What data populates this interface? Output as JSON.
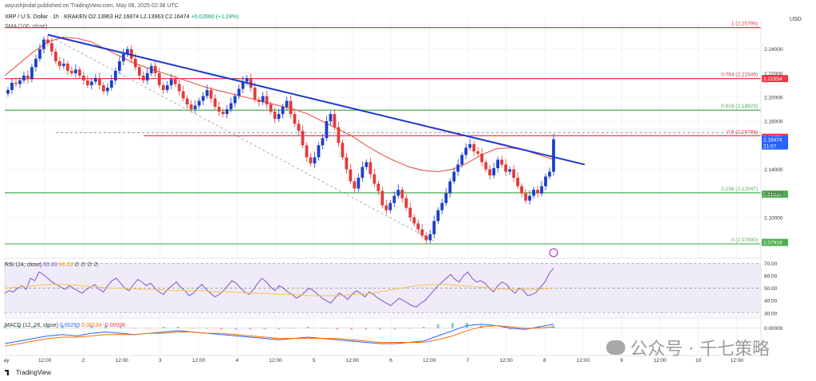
{
  "header": {
    "published": "aayushjindal published on TradingView.com, May 08, 2025 02:38 UTC",
    "symbol": "XRP / U.S. Dollar · 1h · KRAKEN",
    "ohlc": "O2.13963 H2.16874 L2.13963 C2.16474",
    "change": "+0.02660 (+1.24%)",
    "sma_label": "SMA (100, close)",
    "currency": "USD"
  },
  "indicators": {
    "rsi_label": "RSI (14, close)",
    "rsi_value": "65.93",
    "rsi_ma": "48.26",
    "rsi_extra": "∅ ∅ ∅ ∅",
    "macd_label": "MACD (12, 26, close)",
    "macd_values": [
      "0.00293",
      "0.00134",
      "-0.00098"
    ]
  },
  "watermark": "公众号 · 千七策略",
  "branding": "TradingView",
  "chart_data": [
    {
      "type": "candlestick",
      "title": "XRP / U.S. Dollar · 1h · KRAKEN",
      "ylim": [
        2.07,
        2.265
      ],
      "xlabel": "",
      "ylabel": "USD",
      "x_ticks": [
        "ay",
        "12:00",
        "2",
        "12:00",
        "3",
        "12:00",
        "4",
        "12:00",
        "5",
        "12:00",
        "6",
        "12:00",
        "7",
        "12:00",
        "8",
        "12:00",
        "9",
        "12:00",
        "10",
        "12:00"
      ],
      "y_ticks": [
        2.24,
        2.22,
        2.2,
        2.18,
        2.14,
        2.12,
        2.1
      ],
      "close_path": [
        2.206,
        2.212,
        2.211,
        2.214,
        2.218,
        2.215,
        2.225,
        2.232,
        2.24,
        2.248,
        2.245,
        2.238,
        2.23,
        2.226,
        2.228,
        2.222,
        2.22,
        2.223,
        2.218,
        2.214,
        2.21,
        2.213,
        2.216,
        2.21,
        2.205,
        2.208,
        2.214,
        2.222,
        2.23,
        2.236,
        2.24,
        2.232,
        2.225,
        2.218,
        2.214,
        2.22,
        2.226,
        2.22,
        2.21,
        2.206,
        2.21,
        2.215,
        2.211,
        2.205,
        2.199,
        2.194,
        2.19,
        2.193,
        2.197,
        2.201,
        2.206,
        2.199,
        2.192,
        2.188,
        2.186,
        2.19,
        2.195,
        2.201,
        2.207,
        2.213,
        2.216,
        2.208,
        2.198,
        2.196,
        2.201,
        2.194,
        2.188,
        2.182,
        2.186,
        2.192,
        2.197,
        2.186,
        2.178,
        2.172,
        2.16,
        2.15,
        2.145,
        2.15,
        2.16,
        2.166,
        2.18,
        2.186,
        2.175,
        2.162,
        2.15,
        2.14,
        2.13,
        2.124,
        2.133,
        2.142,
        2.146,
        2.136,
        2.128,
        2.122,
        2.11,
        2.106,
        2.112,
        2.118,
        2.123,
        2.116,
        2.108,
        2.1,
        2.095,
        2.09,
        2.085,
        2.081,
        2.086,
        2.097,
        2.106,
        2.112,
        2.12,
        2.13,
        2.138,
        2.144,
        2.152,
        2.158,
        2.161,
        2.155,
        2.153,
        2.146,
        2.14,
        2.135,
        2.141,
        2.148,
        2.144,
        2.138,
        2.14,
        2.133,
        2.126,
        2.12,
        2.114,
        2.118,
        2.123,
        2.12,
        2.126,
        2.134,
        2.138,
        2.165
      ],
      "series": [
        {
          "name": "SMA (100, close)",
          "values": [
            2.218,
            2.228,
            2.238,
            2.246,
            2.25,
            2.249,
            2.246,
            2.24,
            2.234,
            2.228,
            2.224,
            2.22,
            2.216,
            2.212,
            2.208,
            2.205,
            2.202,
            2.199,
            2.196,
            2.193,
            2.19,
            2.186,
            2.18,
            2.174,
            2.168,
            2.16,
            2.153,
            2.147,
            2.142,
            2.139,
            2.138,
            2.14,
            2.145,
            2.152,
            2.157,
            2.158,
            2.156,
            2.152,
            2.148
          ]
        },
        {
          "name": "Trend line",
          "values": [
            2.252,
            2.144
          ]
        }
      ],
      "horizontal_levels": [
        {
          "name": "fib-1",
          "label": "1 (2.25796)",
          "value": 2.25796,
          "color": "#f23645"
        },
        {
          "name": "fib-0.764",
          "label": "0.764 (2.21549)",
          "value": 2.21549,
          "color": "#f23645"
        },
        {
          "name": "fib-0.618",
          "label": "0.618 (2.18923)",
          "value": 2.18923,
          "color": "#4caf50"
        },
        {
          "name": "fib-0.5",
          "label": "0.5 (2.16798)",
          "value": 2.16798,
          "color": "#f23645"
        },
        {
          "name": "fib-0.236",
          "label": "0.236 (2.12047)",
          "value": 2.12047,
          "color": "#4caf50"
        },
        {
          "name": "fib-0",
          "label": "0 (2.07800)",
          "value": 2.078,
          "color": "#4caf50"
        }
      ],
      "price_badges": [
        {
          "text": "2.21554",
          "value": 2.21554,
          "color": "#f23645"
        },
        {
          "text": "2.16671",
          "value": 2.16671,
          "color": "#f23645"
        },
        {
          "text": "2.16474",
          "value": 2.16474,
          "color": "#2962ff",
          "sub": "21:07"
        },
        {
          "text": "2.11934",
          "value": 2.11934,
          "color": "#4caf50"
        },
        {
          "text": "2.07919",
          "value": 2.07919,
          "color": "#4caf50"
        }
      ]
    },
    {
      "type": "line",
      "title": "RSI (14, close)",
      "ylim": [
        28,
        74
      ],
      "y_ticks": [
        70.0,
        60.0,
        50.0,
        40.0,
        30.0
      ],
      "series": [
        {
          "name": "RSI",
          "values": [
            46,
            48,
            47,
            50,
            52,
            49,
            58,
            56,
            63,
            61,
            58,
            55,
            53,
            51,
            49,
            52,
            50,
            48,
            46,
            49,
            51,
            53,
            49,
            47,
            52,
            56,
            58,
            54,
            50,
            48,
            53,
            57,
            55,
            52,
            54,
            50,
            47,
            45,
            49,
            52,
            55,
            51,
            48,
            44,
            46,
            50,
            53,
            49,
            46,
            43,
            45,
            48,
            52,
            56,
            54,
            50,
            47,
            45,
            49,
            54,
            58,
            55,
            51,
            48,
            52,
            50,
            47,
            45,
            42,
            44,
            47,
            50,
            48,
            45,
            42,
            40,
            38,
            42,
            46,
            44,
            41,
            45,
            48,
            46,
            43,
            47,
            45,
            42,
            40,
            38,
            36,
            39,
            42,
            40,
            38,
            36,
            35,
            38,
            40,
            44,
            48,
            52,
            55,
            58,
            61,
            57,
            55,
            60,
            63,
            58,
            55,
            56,
            54,
            50,
            47,
            52,
            55,
            53,
            49,
            46,
            50,
            48,
            44,
            45,
            47,
            51,
            55,
            62,
            66
          ]
        },
        {
          "name": "RSI MA",
          "values": [
            50,
            51,
            52,
            53,
            53,
            52,
            51,
            50,
            50,
            49,
            49,
            48,
            48,
            48,
            47,
            47,
            46,
            46,
            45,
            45,
            44,
            44,
            44,
            45,
            46,
            48,
            50,
            52,
            53,
            53,
            52,
            51,
            50,
            49,
            49,
            49,
            50
          ]
        }
      ]
    },
    {
      "type": "line",
      "title": "MACD (12, 26, close)",
      "ylim": [
        -0.02,
        0.006
      ],
      "y_ticks": [
        0.0
      ],
      "series": [
        {
          "name": "MACD",
          "values": [
            -0.012,
            -0.01,
            -0.008,
            -0.006,
            -0.005,
            -0.006,
            -0.004,
            -0.003,
            -0.004,
            -0.005,
            -0.004,
            -0.003,
            -0.002,
            -0.003,
            -0.004,
            -0.005,
            -0.006,
            -0.007,
            -0.008,
            -0.009,
            -0.008,
            -0.007,
            -0.008,
            -0.009,
            -0.01,
            -0.011,
            -0.012,
            -0.012,
            -0.011,
            -0.01,
            -0.006,
            -0.002,
            0.002,
            0.003,
            0.002,
            0.0,
            -0.001,
            0.001,
            0.003
          ]
        },
        {
          "name": "Signal",
          "values": [
            -0.014,
            -0.012,
            -0.01,
            -0.008,
            -0.007,
            -0.007,
            -0.006,
            -0.005,
            -0.005,
            -0.005,
            -0.004,
            -0.004,
            -0.003,
            -0.003,
            -0.004,
            -0.004,
            -0.005,
            -0.006,
            -0.007,
            -0.008,
            -0.008,
            -0.008,
            -0.008,
            -0.008,
            -0.009,
            -0.01,
            -0.011,
            -0.011,
            -0.011,
            -0.011,
            -0.009,
            -0.006,
            -0.002,
            0.001,
            0.002,
            0.001,
            0.0,
            0.0,
            0.001
          ]
        }
      ]
    }
  ]
}
